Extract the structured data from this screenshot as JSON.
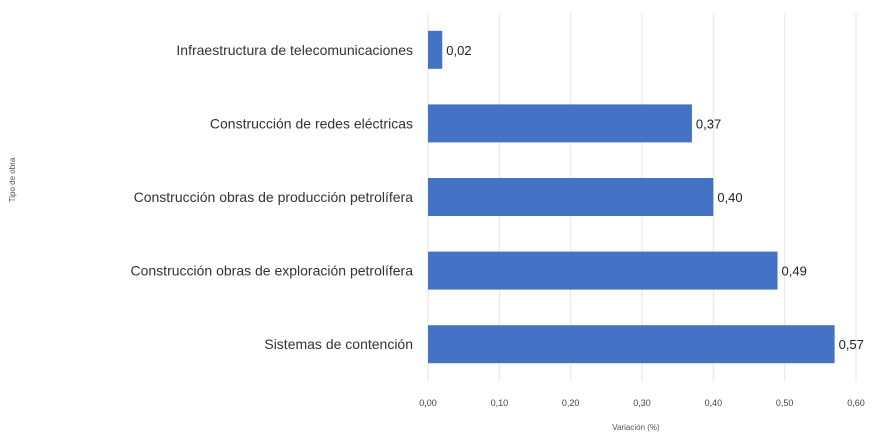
{
  "chart_data": {
    "type": "bar",
    "orientation": "horizontal",
    "categories": [
      "Infraestructura de telecomunicaciones",
      "Construcción de redes eléctricas",
      "Construcción obras de producción petrolífera",
      "Construcción obras de exploración petrolífera",
      "Sistemas de contención"
    ],
    "values": [
      0.02,
      0.37,
      0.4,
      0.49,
      0.57
    ],
    "data_labels": [
      "0,02",
      "0,37",
      "0,40",
      "0,49",
      "0,57"
    ],
    "xticks": [
      0,
      0.1,
      0.2,
      0.3,
      0.4,
      0.5,
      0.6
    ],
    "xtick_labels": [
      "0,00",
      "0,10",
      "0,20",
      "0,30",
      "0,40",
      "0,50",
      "0,60"
    ],
    "xlim": [
      0,
      0.6
    ],
    "xlabel": "Variación (%)",
    "ylabel": "Tipo de obra",
    "title": "",
    "grid": "vertical",
    "legend": "none",
    "bar_color": "#4472c4"
  }
}
